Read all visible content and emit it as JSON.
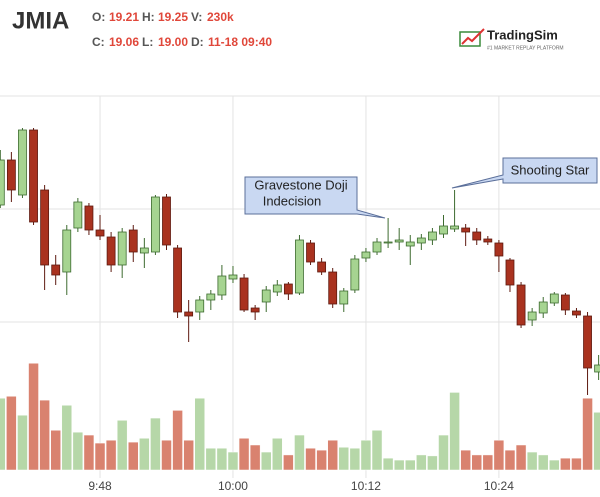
{
  "header": {
    "symbol": "JMIA",
    "fields": [
      {
        "label": "O:",
        "value": "19.21"
      },
      {
        "label": "H:",
        "value": "19.25"
      },
      {
        "label": "V:",
        "value": "230k"
      },
      {
        "label": "C:",
        "value": "19.06"
      },
      {
        "label": "L:",
        "value": "19.00"
      },
      {
        "label": "D:",
        "value": "11-18 09:40"
      }
    ],
    "logo": {
      "name": "TradingSim",
      "tagline": "#1 MARKET REPLAY PLATFORM"
    }
  },
  "chart_data": {
    "type": "candlestick",
    "categories": [
      null,
      null,
      null,
      null,
      null,
      null,
      null,
      null,
      null,
      "9:48",
      null,
      null,
      null,
      null,
      null,
      null,
      null,
      null,
      null,
      null,
      null,
      "10:00",
      null,
      null,
      null,
      null,
      null,
      null,
      null,
      null,
      null,
      null,
      null,
      "10:12",
      null,
      null,
      null,
      null,
      null,
      null,
      null,
      null,
      null,
      null,
      null,
      "10:24",
      null,
      null,
      null,
      null,
      null,
      null,
      null,
      null,
      null
    ],
    "open": [
      18.985,
      19.21,
      19.035,
      19.36,
      19.06,
      18.685,
      18.65,
      18.87,
      18.98,
      18.86,
      18.825,
      18.685,
      18.86,
      18.745,
      18.75,
      19.025,
      18.77,
      18.45,
      18.45,
      18.51,
      18.535,
      18.615,
      18.62,
      18.47,
      18.5,
      18.55,
      18.59,
      18.545,
      18.795,
      18.7,
      18.65,
      18.49,
      18.56,
      18.72,
      18.75,
      18.795,
      18.8,
      18.78,
      18.795,
      18.81,
      18.84,
      18.865,
      18.87,
      18.85,
      18.815,
      18.795,
      18.71,
      18.585,
      18.41,
      18.445,
      18.495,
      18.535,
      18.455,
      18.43,
      18.15
    ],
    "high": [
      19.26,
      19.25,
      19.37,
      19.37,
      19.085,
      18.735,
      18.885,
      19.02,
      18.995,
      18.935,
      18.85,
      18.87,
      18.885,
      18.82,
      19.035,
      19.04,
      18.785,
      18.51,
      18.53,
      18.56,
      18.685,
      18.68,
      18.64,
      18.485,
      18.58,
      18.61,
      18.6,
      18.835,
      18.81,
      18.72,
      18.67,
      18.57,
      18.735,
      18.77,
      18.82,
      18.92,
      18.87,
      18.835,
      18.84,
      18.87,
      18.935,
      19.06,
      18.89,
      18.87,
      18.83,
      18.81,
      18.72,
      18.6,
      18.47,
      18.525,
      18.55,
      18.545,
      18.47,
      18.45,
      18.235
    ],
    "low": [
      18.97,
      19.0,
      19.02,
      18.885,
      18.56,
      18.585,
      18.535,
      18.85,
      18.835,
      18.81,
      18.65,
      18.62,
      18.7,
      18.67,
      18.735,
      18.76,
      18.42,
      18.3,
      18.41,
      18.46,
      18.51,
      18.595,
      18.45,
      18.41,
      18.45,
      18.53,
      18.51,
      18.535,
      18.685,
      18.635,
      18.47,
      18.45,
      18.545,
      18.7,
      18.735,
      18.77,
      18.76,
      18.685,
      18.76,
      18.785,
      18.82,
      18.85,
      18.78,
      18.785,
      18.785,
      18.65,
      18.55,
      18.37,
      18.38,
      18.42,
      18.48,
      18.435,
      18.42,
      18.035,
      18.11
    ],
    "close": [
      19.21,
      19.06,
      19.36,
      18.9,
      18.685,
      18.635,
      18.86,
      19.0,
      18.86,
      18.83,
      18.685,
      18.85,
      18.75,
      18.77,
      19.025,
      18.785,
      18.45,
      18.43,
      18.51,
      18.54,
      18.63,
      18.635,
      18.46,
      18.45,
      18.56,
      18.585,
      18.54,
      18.81,
      18.7,
      18.65,
      18.49,
      18.555,
      18.715,
      18.75,
      18.8,
      18.8,
      18.81,
      18.8,
      18.82,
      18.85,
      18.88,
      18.88,
      18.85,
      18.81,
      18.8,
      18.73,
      18.585,
      18.385,
      18.45,
      18.5,
      18.54,
      18.46,
      18.435,
      18.17,
      18.185
    ],
    "volume": [
      224000,
      230000,
      171000,
      333000,
      218000,
      124000,
      202000,
      118000,
      109000,
      84000,
      93000,
      155000,
      87000,
      99000,
      162000,
      93000,
      186000,
      93000,
      224000,
      68000,
      68000,
      56000,
      99000,
      78000,
      56000,
      99000,
      47000,
      109000,
      68000,
      62000,
      93000,
      71000,
      68000,
      93000,
      124000,
      37000,
      31000,
      31000,
      47000,
      44000,
      109000,
      242000,
      62000,
      47000,
      47000,
      93000,
      62000,
      78000,
      56000,
      47000,
      31000,
      37000,
      37000,
      224000,
      180000
    ],
    "ylim": [
      18.03,
      19.53
    ],
    "volume_lim": [
      0,
      340000
    ],
    "up_color": "#a6d491",
    "down_color": "#a9321f",
    "volume_up_color": "#b6d7a8",
    "volume_down_color": "#d9826f",
    "annotations": [
      {
        "lines": [
          "Gravestone Doji",
          "Indecision"
        ]
      },
      {
        "lines": [
          "Shooting Star"
        ]
      }
    ]
  }
}
